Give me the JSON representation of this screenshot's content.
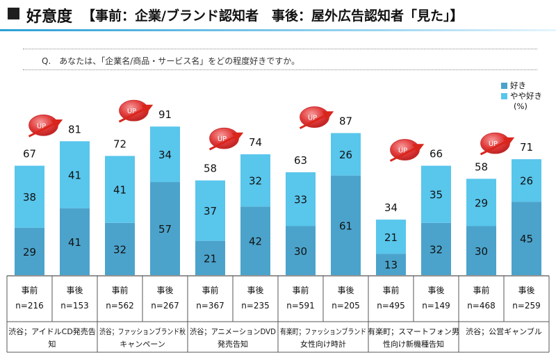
{
  "header": {
    "title": "好意度",
    "subtitle": "【事前：企業/ブランド認知者　事後：屋外広告認知者「見た」】"
  },
  "question": "Q.　あなたは、「企業名/商品・サービス名」をどの程度好きですか。",
  "legend": {
    "items": [
      "好き",
      "やや好き"
    ],
    "unit": "(%)"
  },
  "up_label": "UP",
  "colors": {
    "like": "#4ba3cb",
    "somewhat": "#59c6ec",
    "up_badge": "#e23b3b",
    "arrow": "#d9261c"
  },
  "chart_data": {
    "type": "bar",
    "stacked": true,
    "ylim": [
      0,
      100
    ],
    "grid": false,
    "legend_placement": "top-right",
    "series": [
      {
        "name": "好き",
        "values": [
          29,
          41,
          32,
          57,
          21,
          42,
          30,
          61,
          13,
          32,
          30,
          45
        ]
      },
      {
        "name": "やや好き",
        "values": [
          38,
          41,
          41,
          34,
          37,
          32,
          33,
          26,
          21,
          35,
          29,
          26
        ]
      }
    ],
    "totals": [
      67,
      81,
      72,
      91,
      58,
      74,
      63,
      87,
      34,
      66,
      58,
      71
    ],
    "bars": [
      {
        "period": "事前",
        "n": "n=216"
      },
      {
        "period": "事後",
        "n": "n=153"
      },
      {
        "period": "事前",
        "n": "n=562"
      },
      {
        "period": "事後",
        "n": "n=267"
      },
      {
        "period": "事前",
        "n": "n=367"
      },
      {
        "period": "事後",
        "n": "n=235"
      },
      {
        "period": "事前",
        "n": "n=591"
      },
      {
        "period": "事後",
        "n": "n=205"
      },
      {
        "period": "事前",
        "n": "n=495"
      },
      {
        "period": "事後",
        "n": "n=149"
      },
      {
        "period": "事前",
        "n": "n=468"
      },
      {
        "period": "事後",
        "n": "n=259"
      }
    ],
    "groups": [
      {
        "line1": "渋谷；アイドルCD発売告",
        "line2": "知"
      },
      {
        "line1": "渋谷；ファッションブランド秋",
        "line2": "キャンペーン"
      },
      {
        "line1": "渋谷；アニメーションDVD",
        "line2": "発売告知"
      },
      {
        "line1": "有楽町；ファッションブランド",
        "line2": "女性向け時計"
      },
      {
        "line1": "有楽町；スマートフォン男",
        "line2": "性向け新機種告知"
      },
      {
        "line1": "渋谷；公営ギャンブル",
        "line2": ""
      }
    ]
  }
}
